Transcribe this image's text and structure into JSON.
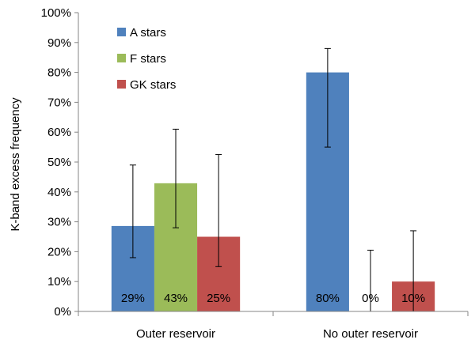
{
  "chart_data": {
    "type": "bar",
    "title": "",
    "xlabel": "",
    "ylabel": "K-band excess frequency",
    "ylim": [
      0,
      100
    ],
    "ytick_format": "percent",
    "yticks": [
      "0%",
      "10%",
      "20%",
      "30%",
      "40%",
      "50%",
      "60%",
      "70%",
      "80%",
      "90%",
      "100%"
    ],
    "grid": false,
    "legend_position": "top-left",
    "categories": [
      "Outer reservoir",
      "No outer reservoir"
    ],
    "series": [
      {
        "name": "A stars",
        "color": "#4F81BD",
        "values": [
          28.6,
          80
        ],
        "err_low": [
          18,
          55
        ],
        "err_high": [
          49,
          88
        ],
        "data_labels": [
          "29%",
          "80%"
        ]
      },
      {
        "name": "F stars",
        "color": "#9BBB59",
        "values": [
          42.9,
          0
        ],
        "err_low": [
          28,
          0
        ],
        "err_high": [
          61,
          20.5
        ],
        "data_labels": [
          "43%",
          "0%"
        ]
      },
      {
        "name": "GK stars",
        "color": "#C0504D",
        "values": [
          25,
          10
        ],
        "err_low": [
          15,
          0
        ],
        "err_high": [
          52.5,
          27
        ],
        "data_labels": [
          "25%",
          "10%"
        ]
      }
    ]
  }
}
